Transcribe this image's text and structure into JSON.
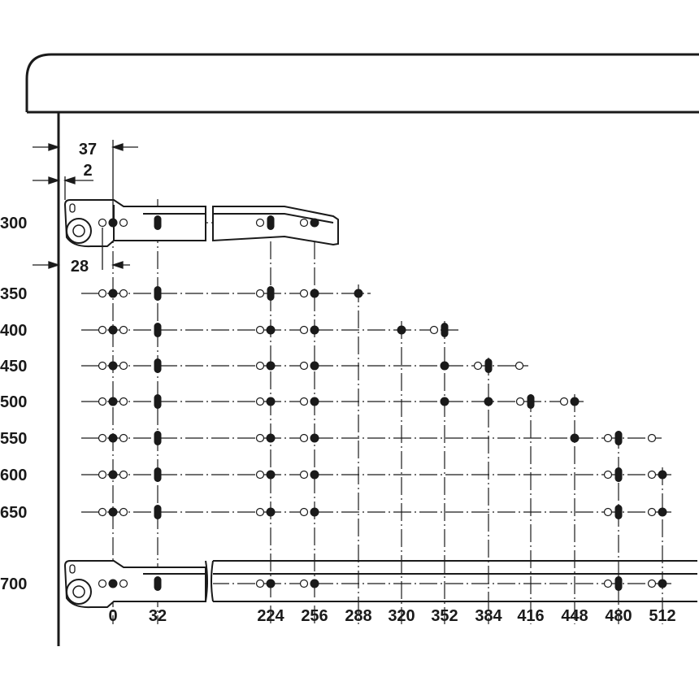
{
  "row_labels": [
    "300",
    "350",
    "400",
    "450",
    "500",
    "550",
    "600",
    "650",
    "700"
  ],
  "column_labels": [
    "0",
    "32",
    "224",
    "256",
    "288",
    "320",
    "352",
    "384",
    "416",
    "448",
    "480",
    "512"
  ],
  "dimensions": {
    "d37": "37",
    "d2": "2",
    "d28": "28"
  },
  "colors": {
    "line": "#1a1a1a",
    "background": "#ffffff"
  }
}
